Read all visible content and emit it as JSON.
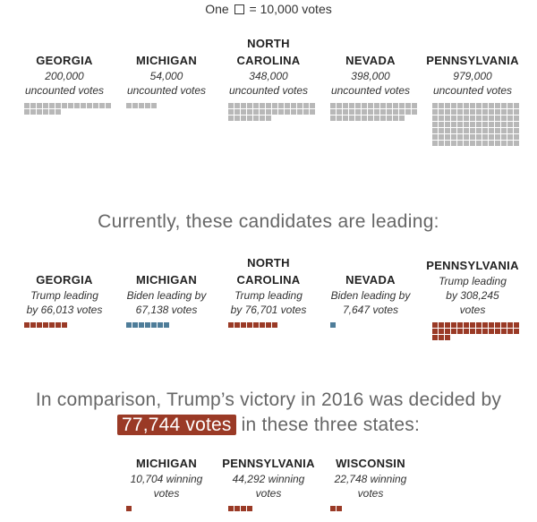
{
  "legend": {
    "prefix": "One",
    "suffix": "= 10,000 votes"
  },
  "colors": {
    "uncounted": "#b8b8b8",
    "trump": "#9a3a26",
    "biden": "#4e7d99"
  },
  "section1": {
    "states": [
      {
        "name": "GEORGIA",
        "line1": "200,000",
        "line2": "uncounted votes"
      },
      {
        "name": "MICHIGAN",
        "line1": "54,000",
        "line2": "uncounted votes"
      },
      {
        "name_top": "NORTH",
        "name": "CAROLINA",
        "line1": "348,000",
        "line2": "uncounted votes"
      },
      {
        "name": "NEVADA",
        "line1": "398,000",
        "line2": "uncounted votes"
      },
      {
        "name": "PENNSYLVANIA",
        "line1": "979,000",
        "line2": "uncounted votes"
      }
    ]
  },
  "heading1": "Currently, these candidates are leading:",
  "section2": {
    "states": [
      {
        "name": "GEORGIA",
        "line1": "Trump leading",
        "line2": "by 66,013 votes"
      },
      {
        "name": "MICHIGAN",
        "line1": "Biden leading by",
        "line2": "67,138 votes"
      },
      {
        "name_top": "NORTH",
        "name": "CAROLINA",
        "line1": "Trump leading",
        "line2": "by 76,701 votes"
      },
      {
        "name": "NEVADA",
        "line1": "Biden leading by",
        "line2": "7,647 votes"
      },
      {
        "name": "PENNSYLVANIA",
        "line1": "Trump leading",
        "line2": "by 308,245",
        "line3": "votes"
      }
    ]
  },
  "heading2": {
    "part1": "In comparison, Trump’s victory in 2016 was decided by",
    "highlight": "77,744 votes",
    "part2": "in these three states:"
  },
  "section3": {
    "states": [
      {
        "name": "MICHIGAN",
        "line1": "10,704 winning",
        "line2": "votes"
      },
      {
        "name": "PENNSYLVANIA",
        "line1": "44,292 winning",
        "line2": "votes"
      },
      {
        "name": "WISCONSIN",
        "line1": "22,748 winning",
        "line2": "votes"
      }
    ]
  },
  "chart_data": {
    "type": "waffle",
    "unit": "One square = 10,000 votes",
    "uncounted_votes": {
      "categories": [
        "GEORGIA",
        "MICHIGAN",
        "NORTH CAROLINA",
        "NEVADA",
        "PENNSYLVANIA"
      ],
      "values": [
        200000,
        54000,
        348000,
        398000,
        979000
      ]
    },
    "current_leads": {
      "categories": [
        "GEORGIA",
        "MICHIGAN",
        "NORTH CAROLINA",
        "NEVADA",
        "PENNSYLVANIA"
      ],
      "values": [
        66013,
        67138,
        76701,
        7647,
        308245
      ],
      "leader": [
        "Trump",
        "Biden",
        "Trump",
        "Biden",
        "Trump"
      ]
    },
    "margins_2016": {
      "categories": [
        "MICHIGAN",
        "PENNSYLVANIA",
        "WISCONSIN"
      ],
      "values": [
        10704,
        44292,
        22748
      ],
      "total": 77744
    }
  }
}
